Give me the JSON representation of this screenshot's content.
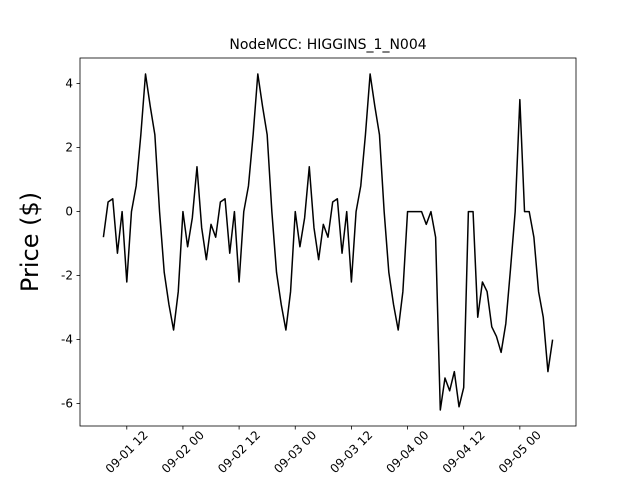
{
  "chart_data": {
    "type": "line",
    "title": "NodeMCC: HIGGINS_1_N004",
    "y_label": "Price ($)",
    "color": "#000000",
    "x": [
      "09-01 07",
      "09-01 08",
      "09-01 09",
      "09-01 10",
      "09-01 11",
      "09-01 12",
      "09-01 13",
      "09-01 14",
      "09-01 15",
      "09-01 16",
      "09-01 17",
      "09-01 18",
      "09-01 19",
      "09-01 20",
      "09-01 21",
      "09-01 22",
      "09-01 23",
      "09-02 00",
      "09-02 01",
      "09-02 02",
      "09-02 03",
      "09-02 04",
      "09-02 05",
      "09-02 06",
      "09-02 07",
      "09-02 08",
      "09-02 09",
      "09-02 10",
      "09-02 11",
      "09-02 12",
      "09-02 13",
      "09-02 14",
      "09-02 15",
      "09-02 16",
      "09-02 17",
      "09-02 18",
      "09-02 19",
      "09-02 20",
      "09-02 21",
      "09-02 22",
      "09-02 23",
      "09-03 00",
      "09-03 01",
      "09-03 02",
      "09-03 03",
      "09-03 04",
      "09-03 05",
      "09-03 06",
      "09-03 07",
      "09-03 08",
      "09-03 09",
      "09-03 10",
      "09-03 11",
      "09-03 12",
      "09-03 13",
      "09-03 14",
      "09-03 15",
      "09-03 16",
      "09-03 17",
      "09-03 18",
      "09-03 19",
      "09-03 20",
      "09-03 21",
      "09-03 22",
      "09-03 23",
      "09-04 00",
      "09-04 01",
      "09-04 02",
      "09-04 03",
      "09-04 04",
      "09-04 05",
      "09-04 06",
      "09-04 07",
      "09-04 08",
      "09-04 09",
      "09-04 10",
      "09-04 11",
      "09-04 12",
      "09-04 13",
      "09-04 14",
      "09-04 15",
      "09-04 16",
      "09-04 17",
      "09-04 18",
      "09-04 19",
      "09-04 20",
      "09-04 21",
      "09-04 22",
      "09-04 23",
      "09-05 00",
      "09-05 01",
      "09-05 02",
      "09-05 03",
      "09-05 04",
      "09-05 05",
      "09-05 06",
      "09-05 07"
    ],
    "values": [
      -0.8,
      0.3,
      0.4,
      -1.3,
      0,
      -2.2,
      0,
      0.8,
      2.4,
      4.3,
      3.3,
      2.4,
      0,
      -1.9,
      -2.9,
      -3.7,
      -2.5,
      0,
      -1.1,
      -0.2,
      1.4,
      -0.5,
      -1.5,
      -0.4,
      -0.8,
      0.3,
      0.4,
      -1.3,
      0,
      -2.2,
      0,
      0.8,
      2.4,
      4.3,
      3.3,
      2.4,
      0,
      -1.9,
      -2.9,
      -3.7,
      -2.5,
      0,
      -1.1,
      -0.2,
      1.4,
      -0.5,
      -1.5,
      -0.4,
      -0.8,
      0.3,
      0.4,
      -1.3,
      0,
      -2.2,
      0,
      0.8,
      2.4,
      4.3,
      3.3,
      2.4,
      0,
      -1.9,
      -2.9,
      -3.7,
      -2.5,
      0,
      0,
      0,
      0,
      -0.4,
      0,
      -0.8,
      -6.2,
      -5.2,
      -5.6,
      -5.0,
      -6.1,
      -5.5,
      0,
      0,
      -3.3,
      -2.2,
      -2.5,
      -3.6,
      -3.9,
      -4.4,
      -3.5,
      -1.8,
      0,
      3.5,
      0,
      0,
      -0.8,
      -2.5,
      -3.3,
      -5.0,
      -4.0
    ],
    "xlim": [
      "09-01 02",
      "09-05 12"
    ],
    "xticks": [
      "09-01 12",
      "09-02 00",
      "09-02 12",
      "09-03 00",
      "09-03 12",
      "09-04 00",
      "09-04 12",
      "09-05 00"
    ],
    "ylim": [
      -6.7,
      4.8
    ],
    "yticks": [
      -6,
      -4,
      -2,
      0,
      2,
      4
    ]
  }
}
